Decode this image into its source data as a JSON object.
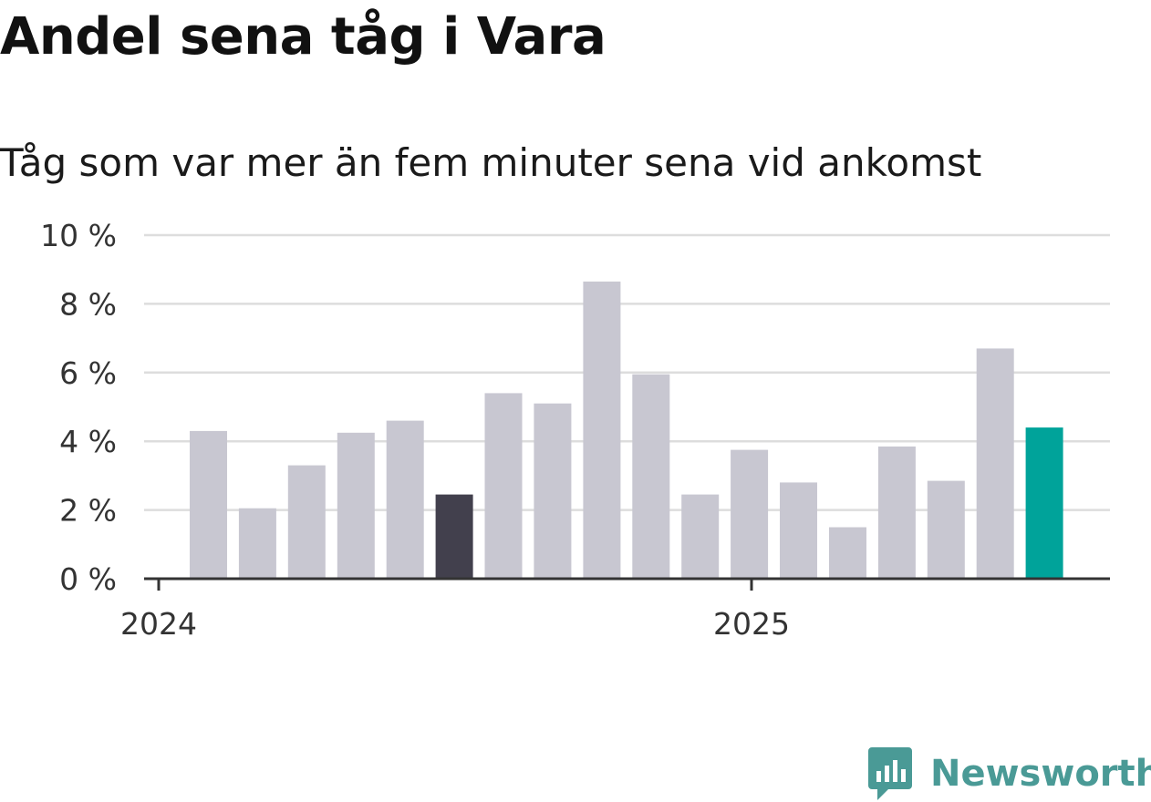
{
  "header": {
    "title": "Andel sena tåg i Vara",
    "subtitle": "Tåg som var mer än fem minuter sena vid ankomst"
  },
  "brand": {
    "name": "Newsworthy",
    "icon": "newsworthy-logo-icon",
    "color": "#4a9a96"
  },
  "colors": {
    "bar_default": "#c8c7d1",
    "bar_highlight_dark": "#42404d",
    "bar_highlight_current": "#00a39a",
    "grid": "#dddddd",
    "axis": "#333333"
  },
  "chart_data": {
    "type": "bar",
    "x_tick_labels": [
      "2024",
      "2025"
    ],
    "y_tick_labels": [
      "0 %",
      "2 %",
      "4 %",
      "6 %",
      "8 %",
      "10 %"
    ],
    "ylim": [
      0,
      10
    ],
    "yticks": [
      0,
      2,
      4,
      6,
      8,
      10
    ],
    "grid": true,
    "values": [
      4.3,
      2.05,
      3.3,
      4.25,
      4.6,
      2.45,
      5.4,
      5.1,
      8.65,
      5.95,
      2.45,
      3.75,
      2.8,
      1.5,
      3.85,
      2.85,
      6.7,
      4.4
    ],
    "highlight": [
      {
        "index": 5,
        "color": "#42404d"
      },
      {
        "index": 17,
        "color": "#00a39a"
      }
    ]
  }
}
